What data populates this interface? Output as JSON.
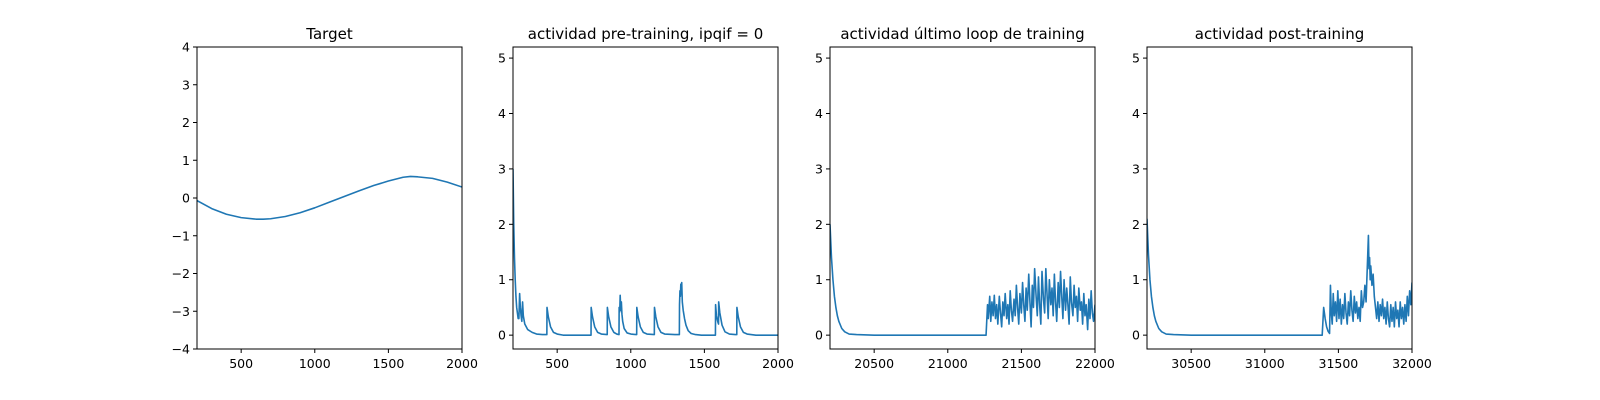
{
  "chart_data": [
    {
      "type": "line",
      "title": "Target",
      "xlim": [
        200,
        2000
      ],
      "ylim": [
        -4,
        4
      ],
      "xticks": [
        500,
        1000,
        1500,
        2000
      ],
      "yticks": [
        -4,
        -3,
        -2,
        -1,
        0,
        1,
        2,
        3,
        4
      ],
      "series": [
        {
          "name": "target",
          "color": "#1f77b4",
          "x": [
            200,
            300,
            400,
            500,
            600,
            650,
            700,
            800,
            900,
            1000,
            1100,
            1200,
            1300,
            1400,
            1500,
            1600,
            1650,
            1700,
            1800,
            1900,
            2000
          ],
          "y": [
            -0.07,
            -0.28,
            -0.43,
            -0.52,
            -0.56,
            -0.56,
            -0.55,
            -0.49,
            -0.39,
            -0.26,
            -0.11,
            0.04,
            0.19,
            0.33,
            0.45,
            0.55,
            0.57,
            0.56,
            0.52,
            0.42,
            0.29
          ]
        }
      ]
    },
    {
      "type": "line",
      "title": "actividad pre-training, ipqif = 0",
      "xlim": [
        200,
        2000
      ],
      "ylim": [
        -0.25,
        5.2
      ],
      "xticks": [
        500,
        1000,
        1500,
        2000
      ],
      "yticks": [
        0,
        1,
        2,
        3,
        4,
        5
      ],
      "series": [
        {
          "name": "actividad",
          "color": "#1f77b4",
          "x": [
            200,
            205,
            210,
            215,
            220,
            225,
            230,
            235,
            240,
            245,
            250,
            255,
            260,
            265,
            270,
            280,
            300,
            330,
            360,
            400,
            430,
            431,
            440,
            455,
            475,
            500,
            540,
            600,
            680,
            730,
            731,
            740,
            755,
            775,
            800,
            840,
            841,
            850,
            865,
            885,
            905,
            920,
            921,
            925,
            928,
            932,
            936,
            940,
            945,
            955,
            975,
            1000,
            1040,
            1041,
            1050,
            1065,
            1085,
            1110,
            1160,
            1161,
            1170,
            1185,
            1205,
            1230,
            1300,
            1330,
            1331,
            1334,
            1337,
            1340,
            1343,
            1346,
            1350,
            1356,
            1365,
            1375,
            1390,
            1410,
            1440,
            1480,
            1540,
            1575,
            1576,
            1582,
            1590,
            1596,
            1597,
            1605,
            1620,
            1640,
            1670,
            1710,
            1720,
            1721,
            1730,
            1745,
            1765,
            1790,
            1850,
            1950,
            2000
          ],
          "y": [
            3.0,
            2.0,
            1.4,
            1.0,
            0.7,
            0.5,
            0.4,
            0.3,
            0.3,
            0.75,
            0.5,
            0.35,
            0.25,
            0.6,
            0.35,
            0.2,
            0.1,
            0.05,
            0.02,
            0.01,
            0.01,
            0.5,
            0.33,
            0.15,
            0.05,
            0.02,
            0.0,
            0.0,
            0.0,
            0.0,
            0.5,
            0.33,
            0.15,
            0.05,
            0.02,
            0.01,
            0.5,
            0.33,
            0.15,
            0.05,
            0.02,
            0.01,
            0.5,
            0.42,
            0.72,
            0.45,
            0.6,
            0.38,
            0.25,
            0.12,
            0.04,
            0.02,
            0.01,
            0.5,
            0.33,
            0.15,
            0.05,
            0.02,
            0.01,
            0.5,
            0.33,
            0.15,
            0.05,
            0.02,
            0.01,
            0.01,
            0.55,
            0.8,
            0.7,
            0.92,
            0.75,
            0.95,
            0.6,
            0.45,
            0.3,
            0.18,
            0.08,
            0.03,
            0.01,
            0.0,
            0.0,
            0.0,
            0.55,
            0.35,
            0.25,
            0.2,
            0.6,
            0.4,
            0.18,
            0.06,
            0.02,
            0.01,
            0.01,
            0.5,
            0.33,
            0.15,
            0.05,
            0.02,
            0.0,
            0.0,
            0.0
          ]
        }
      ]
    },
    {
      "type": "line",
      "title": "actividad último loop de training",
      "xlim": [
        20200,
        22000
      ],
      "ylim": [
        -0.25,
        5.2
      ],
      "xticks": [
        20500,
        21000,
        21500,
        22000
      ],
      "yticks": [
        0,
        1,
        2,
        3,
        4,
        5
      ],
      "series": [
        {
          "name": "actividad",
          "color": "#1f77b4",
          "x": [
            20200,
            20210,
            20220,
            20230,
            20240,
            20250,
            20260,
            20280,
            20300,
            20330,
            20380,
            20500,
            20700,
            21000,
            21260,
            21270,
            21275,
            21285,
            21292,
            21300,
            21308,
            21316,
            21324,
            21332,
            21340,
            21350,
            21358,
            21366,
            21374,
            21382,
            21390,
            21400,
            21408,
            21416,
            21424,
            21432,
            21440,
            21450,
            21458,
            21466,
            21474,
            21482,
            21490,
            21500,
            21508,
            21516,
            21524,
            21532,
            21540,
            21550,
            21558,
            21566,
            21574,
            21582,
            21590,
            21600,
            21608,
            21616,
            21624,
            21632,
            21640,
            21650,
            21658,
            21666,
            21674,
            21682,
            21690,
            21700,
            21708,
            21716,
            21724,
            21732,
            21740,
            21750,
            21758,
            21766,
            21774,
            21782,
            21790,
            21800,
            21808,
            21816,
            21824,
            21832,
            21840,
            21850,
            21858,
            21866,
            21874,
            21882,
            21890,
            21900,
            21908,
            21916,
            21924,
            21932,
            21940,
            21950,
            21958,
            21966,
            21974,
            21982,
            21990,
            22000
          ],
          "y": [
            2.0,
            1.4,
            1.0,
            0.7,
            0.5,
            0.35,
            0.25,
            0.12,
            0.06,
            0.02,
            0.01,
            0.0,
            0.0,
            0.0,
            0.0,
            0.55,
            0.3,
            0.7,
            0.25,
            0.6,
            0.35,
            0.72,
            0.3,
            0.55,
            0.2,
            0.7,
            0.4,
            0.15,
            0.6,
            0.35,
            0.75,
            0.3,
            0.55,
            0.2,
            0.8,
            0.45,
            0.25,
            0.65,
            0.35,
            0.9,
            0.5,
            0.2,
            0.75,
            0.4,
            0.95,
            0.55,
            0.25,
            0.85,
            0.45,
            1.1,
            0.6,
            0.15,
            0.9,
            0.5,
            1.2,
            0.7,
            0.35,
            1.05,
            0.55,
            0.2,
            1.15,
            0.65,
            0.4,
            1.2,
            0.75,
            0.3,
            1.0,
            0.55,
            0.85,
            0.35,
            1.1,
            0.6,
            0.25,
            0.95,
            0.5,
            1.15,
            0.7,
            0.3,
            1.0,
            0.45,
            0.85,
            0.55,
            0.2,
            1.05,
            0.6,
            0.35,
            0.9,
            0.5,
            0.7,
            0.25,
            0.85,
            0.45,
            0.6,
            0.2,
            0.75,
            0.35,
            0.55,
            0.1,
            0.65,
            0.3,
            0.8,
            0.4,
            0.25,
            0.55
          ]
        }
      ]
    },
    {
      "type": "line",
      "title": "actividad post-training",
      "xlim": [
        30200,
        32000
      ],
      "ylim": [
        -0.25,
        5.2
      ],
      "xticks": [
        30500,
        31000,
        31500,
        32000
      ],
      "yticks": [
        0,
        1,
        2,
        3,
        4,
        5
      ],
      "series": [
        {
          "name": "actividad",
          "color": "#1f77b4",
          "x": [
            30200,
            30210,
            30220,
            30230,
            30240,
            30250,
            30260,
            30280,
            30300,
            30330,
            30380,
            30500,
            30800,
            31100,
            31390,
            31400,
            31410,
            31420,
            31430,
            31440,
            31446,
            31452,
            31458,
            31465,
            31472,
            31480,
            31488,
            31496,
            31504,
            31512,
            31520,
            31528,
            31536,
            31544,
            31552,
            31560,
            31568,
            31576,
            31584,
            31592,
            31600,
            31608,
            31616,
            31624,
            31632,
            31640,
            31648,
            31656,
            31664,
            31672,
            31680,
            31688,
            31696,
            31700,
            31704,
            31708,
            31712,
            31716,
            31720,
            31728,
            31736,
            31744,
            31752,
            31760,
            31768,
            31776,
            31784,
            31792,
            31800,
            31808,
            31816,
            31824,
            31832,
            31840,
            31848,
            31856,
            31864,
            31872,
            31880,
            31888,
            31896,
            31904,
            31912,
            31920,
            31928,
            31936,
            31944,
            31952,
            31960,
            31968,
            31976,
            31984,
            31992,
            32000
          ],
          "y": [
            2.1,
            1.45,
            1.0,
            0.7,
            0.5,
            0.35,
            0.25,
            0.12,
            0.06,
            0.02,
            0.01,
            0.0,
            0.0,
            0.0,
            0.0,
            0.5,
            0.3,
            0.15,
            0.07,
            0.03,
            0.9,
            0.4,
            0.2,
            0.75,
            0.35,
            0.6,
            0.25,
            0.8,
            0.3,
            0.65,
            0.2,
            0.55,
            0.3,
            0.75,
            0.4,
            0.2,
            0.6,
            0.35,
            0.8,
            0.45,
            0.25,
            0.7,
            0.4,
            0.6,
            0.3,
            0.5,
            0.25,
            0.8,
            0.5,
            0.6,
            0.9,
            0.6,
            1.2,
            1.5,
            1.8,
            1.2,
            1.4,
            1.0,
            1.25,
            0.9,
            1.1,
            0.7,
            0.5,
            0.3,
            0.6,
            0.25,
            0.55,
            0.35,
            0.65,
            0.3,
            0.5,
            0.2,
            0.6,
            0.3,
            0.15,
            0.55,
            0.25,
            0.5,
            0.15,
            0.6,
            0.3,
            0.45,
            0.15,
            0.6,
            0.3,
            0.5,
            0.2,
            0.55,
            0.25,
            0.7,
            0.35,
            0.8,
            0.55,
            0.95
          ]
        }
      ]
    }
  ]
}
